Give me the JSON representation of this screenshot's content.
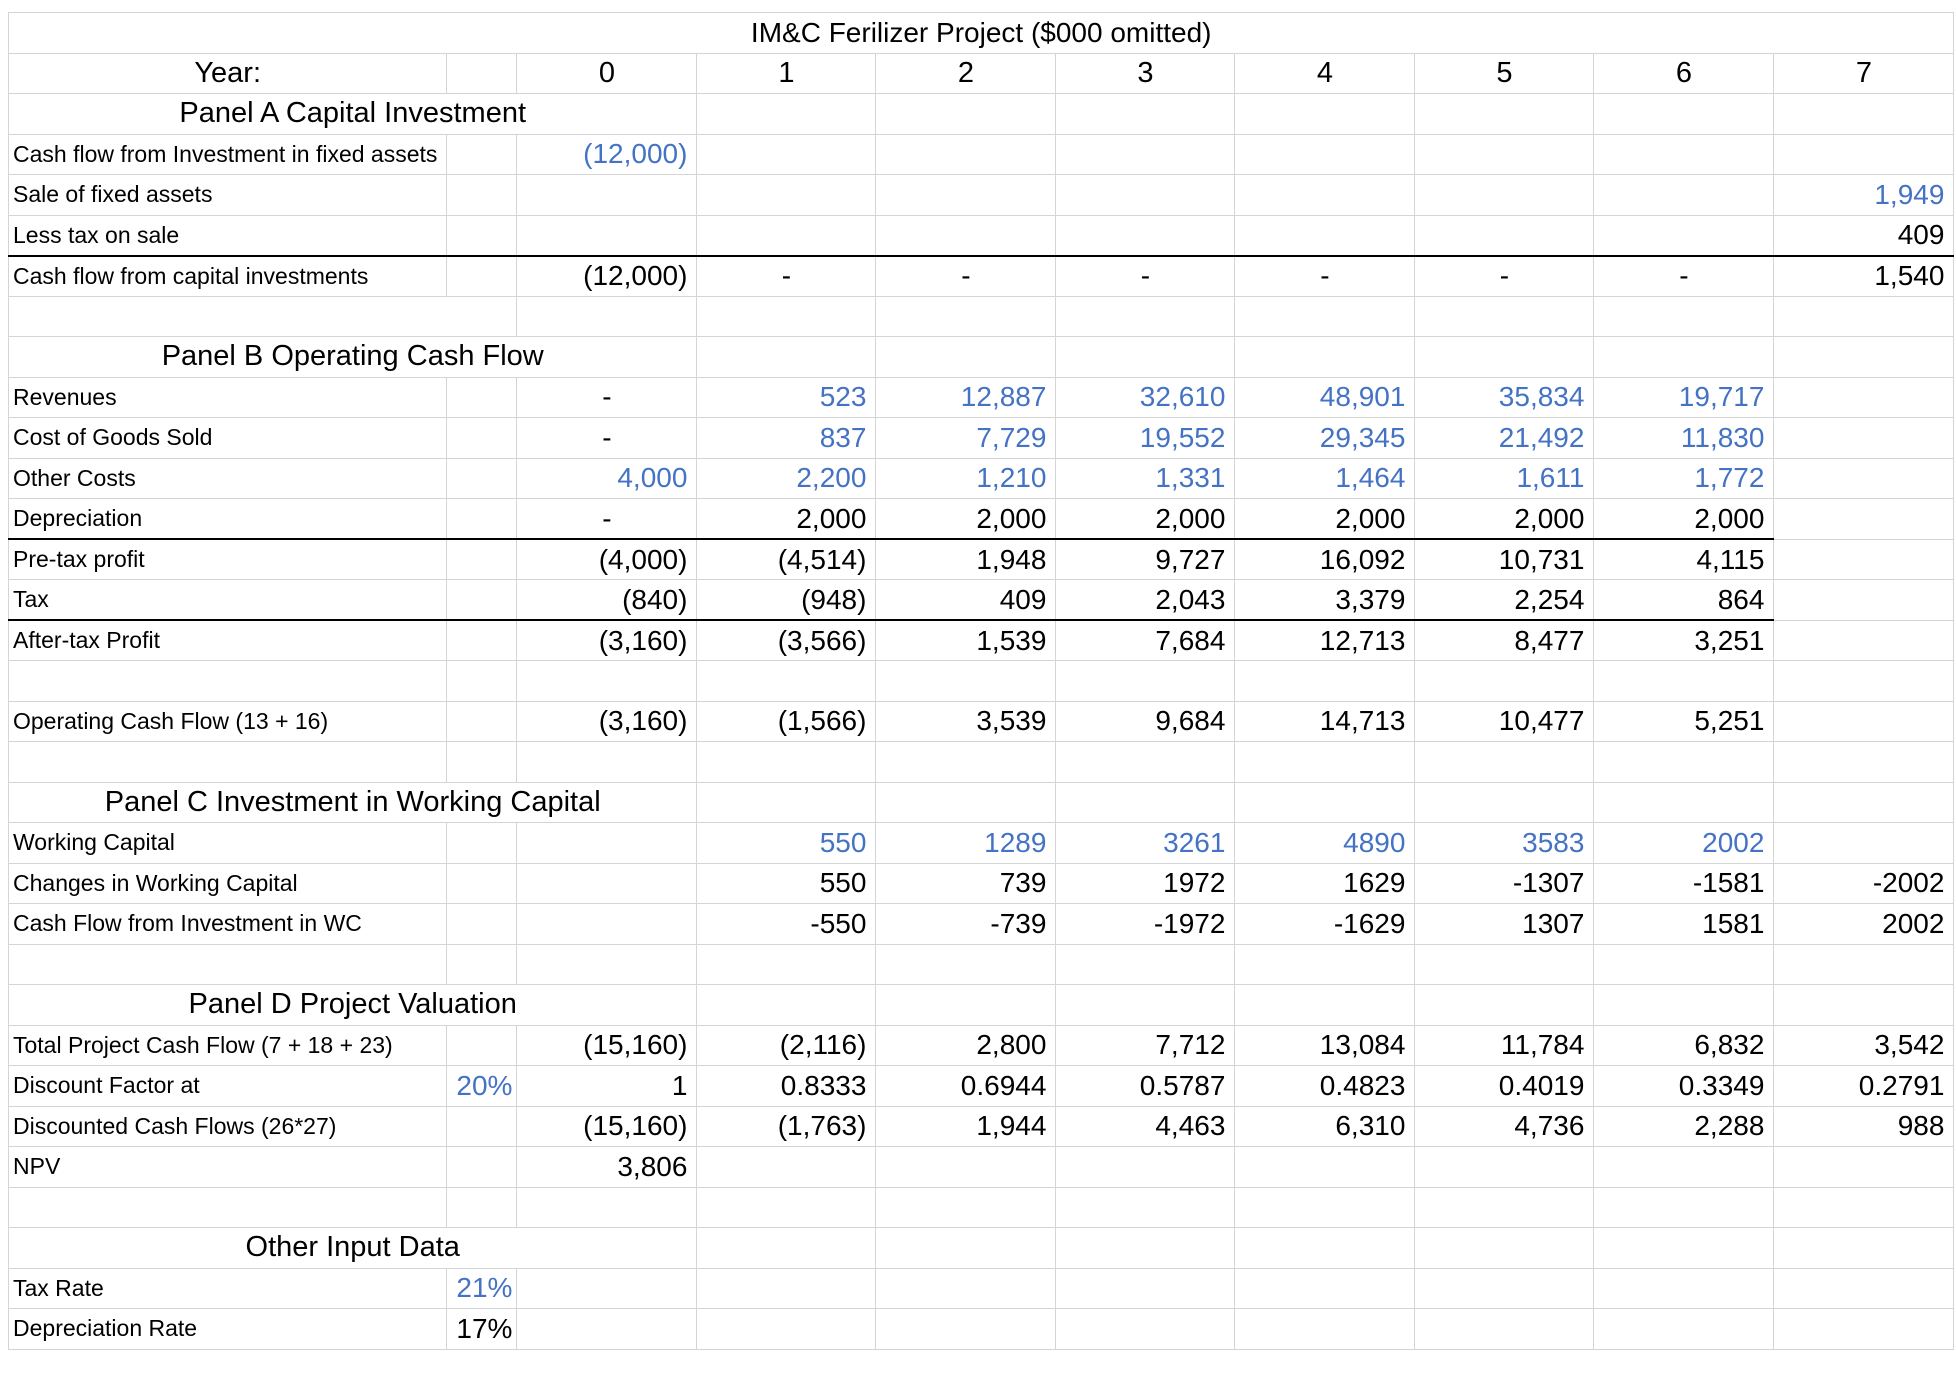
{
  "title": "IM&C Ferilizer Project ($000 omitted)",
  "year_label": "Year:",
  "years": [
    "0",
    "1",
    "2",
    "3",
    "4",
    "5",
    "6",
    "7"
  ],
  "panels": {
    "a": "Panel A Capital Investment",
    "b": "Panel B Operating Cash Flow",
    "c": "Panel C Investment in Working Capital",
    "d": "Panel D Project Valuation",
    "e": "Other Input Data"
  },
  "rows": {
    "fixed_assets": {
      "label": "Cash flow from Investment in fixed assets",
      "y0": "(12,000)"
    },
    "sale_assets": {
      "label": "Sale of fixed assets",
      "y7": "1,949"
    },
    "tax_sale": {
      "label": "Less tax on sale",
      "y7": "409"
    },
    "cf_capital": {
      "label": "Cash flow from capital investments",
      "values": [
        "(12,000)",
        "-",
        "-",
        "-",
        "-",
        "-",
        "-",
        "1,540"
      ]
    },
    "revenues": {
      "label": "Revenues",
      "values": [
        "-",
        "523",
        "12,887",
        "32,610",
        "48,901",
        "35,834",
        "19,717"
      ]
    },
    "cogs": {
      "label": "Cost of Goods Sold",
      "values": [
        "-",
        "837",
        "7,729",
        "19,552",
        "29,345",
        "21,492",
        "11,830"
      ]
    },
    "other_costs": {
      "label": "Other Costs",
      "values": [
        "4,000",
        "2,200",
        "1,210",
        "1,331",
        "1,464",
        "1,611",
        "1,772"
      ]
    },
    "depreciation": {
      "label": "Depreciation",
      "values": [
        "-",
        "2,000",
        "2,000",
        "2,000",
        "2,000",
        "2,000",
        "2,000"
      ]
    },
    "pretax": {
      "label": "Pre-tax profit",
      "values": [
        "(4,000)",
        "(4,514)",
        "1,948",
        "9,727",
        "16,092",
        "10,731",
        "4,115"
      ]
    },
    "tax": {
      "label": "Tax",
      "values": [
        "(840)",
        "(948)",
        "409",
        "2,043",
        "3,379",
        "2,254",
        "864"
      ]
    },
    "aftertax": {
      "label": "After-tax Profit",
      "values": [
        "(3,160)",
        "(3,566)",
        "1,539",
        "7,684",
        "12,713",
        "8,477",
        "3,251"
      ]
    },
    "ocf": {
      "label": "Operating Cash Flow (13 + 16)",
      "values": [
        "(3,160)",
        "(1,566)",
        "3,539",
        "9,684",
        "14,713",
        "10,477",
        "5,251"
      ]
    },
    "wc": {
      "label": "Working Capital",
      "values": [
        "550",
        "1289",
        "3261",
        "4890",
        "3583",
        "2002"
      ]
    },
    "wc_change": {
      "label": "Changes in Working Capital",
      "values": [
        "550",
        "739",
        "1972",
        "1629",
        "-1307",
        "-1581",
        "-2002"
      ]
    },
    "wc_cf": {
      "label": "Cash Flow from Investment in WC",
      "values": [
        "-550",
        "-739",
        "-1972",
        "-1629",
        "1307",
        "1581",
        "2002"
      ]
    },
    "total_cf": {
      "label": "Total Project Cash Flow (7 + 18 + 23)",
      "values": [
        "(15,160)",
        "(2,116)",
        "2,800",
        "7,712",
        "13,084",
        "11,784",
        "6,832",
        "3,542"
      ]
    },
    "discount": {
      "label": "Discount Factor at",
      "rate": "20%",
      "values": [
        "1",
        "0.8333",
        "0.6944",
        "0.5787",
        "0.4823",
        "0.4019",
        "0.3349",
        "0.2791"
      ]
    },
    "dcf": {
      "label": "Discounted Cash Flows  (26*27)",
      "values": [
        "(15,160)",
        "(1,763)",
        "1,944",
        "4,463",
        "6,310",
        "4,736",
        "2,288",
        "988"
      ]
    },
    "npv": {
      "label": "NPV",
      "value": "3,806"
    },
    "tax_rate": {
      "label": "Tax Rate",
      "value": "21%"
    },
    "dep_rate": {
      "label": "Depreciation Rate",
      "value": "17%"
    }
  },
  "colors": {
    "input": "#4472c4",
    "grid": "#d4d4d4"
  }
}
